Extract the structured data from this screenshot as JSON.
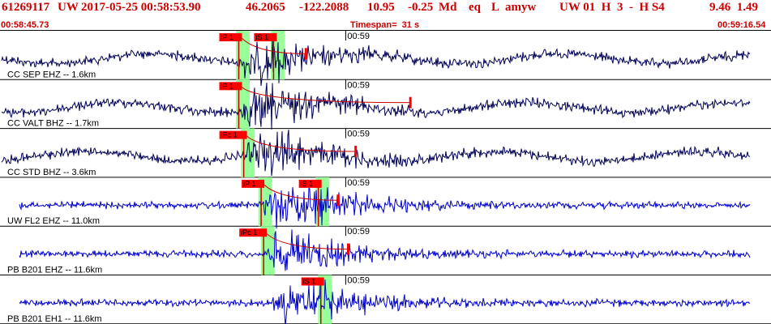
{
  "header": {
    "event_id": "61269117",
    "network": "UW",
    "datetime": "2017-05-25 00:58:53.90",
    "lat": "46.2065",
    "lon": "-122.2088",
    "depth": "10.95",
    "magnitude": "-0.25",
    "mag_type": "Md",
    "event_type": "eq",
    "local": "L",
    "author": "amyw",
    "right_info": "UW 01  H  3  -  H S4",
    "right_vals": "9.46  1.49",
    "start_time": "00:58:45.73",
    "timespan": "Timespan=  31 s",
    "end_time": "00:59:16.54"
  },
  "colors": {
    "header_text": "#cc0000",
    "trace_blue": "#0000cc",
    "trace_navy": "#000055",
    "phase_window": "#99ff99",
    "pick_flag": "#ff0000",
    "pick_line": "#cc0000"
  },
  "chart_data": {
    "type": "seismogram",
    "time_range_s": [
      0,
      31
    ],
    "start_time": "00:58:45.73",
    "minute_tick": "00:59",
    "traces": [
      {
        "label": "CC SEP EHZ -- 1.6km",
        "color": "navy",
        "p_pick": {
          "label": "iP 1",
          "t_s": 9.6
        },
        "s_pick": {
          "label": "iS 1",
          "t_s": 11.0
        },
        "minute_label": "00:59",
        "coda_end_s": 12.3
      },
      {
        "label": "CC VALT BHZ -- 1.7km",
        "color": "navy",
        "p_pick": {
          "label": "iP 1",
          "t_s": 9.6
        },
        "s_pick": null,
        "minute_label": "00:59",
        "coda_end_s": 16.5
      },
      {
        "label": "CC STD BHZ -- 3.6km",
        "color": "navy",
        "p_pick": {
          "label": "iPc 1",
          "t_s": 9.8
        },
        "s_pick": null,
        "minute_label": "00:59",
        "coda_end_s": 14.3
      },
      {
        "label": "UW FL2 EHZ -- 11.0km",
        "color": "blue",
        "p_pick": {
          "label": "iP 1",
          "t_s": 10.5
        },
        "s_pick": {
          "label": "iS 1",
          "t_s": 12.8
        },
        "minute_label": "00:59",
        "coda_end_s": 13.6
      },
      {
        "label": "PB B201 EHZ -- 11.6km",
        "color": "blue",
        "p_pick": {
          "label": "iPc 1",
          "t_s": 10.6
        },
        "s_pick": null,
        "minute_label": "00:59",
        "coda_end_s": 14.0
      },
      {
        "label": "PB B201 EH1 -- 11.6km",
        "color": "blue",
        "p_pick": null,
        "s_pick": {
          "label": "iS 1",
          "t_s": 12.9
        },
        "minute_label": "00:59",
        "coda_end_s": null
      }
    ]
  }
}
